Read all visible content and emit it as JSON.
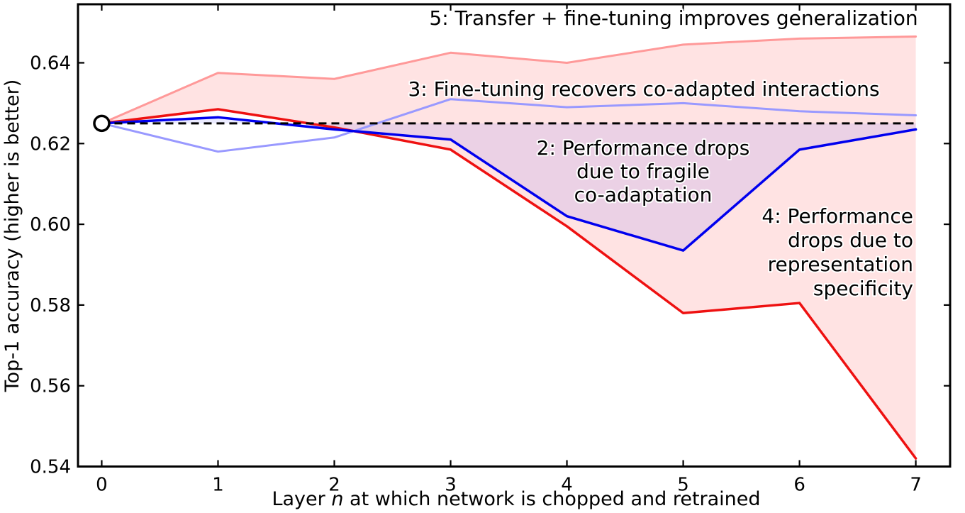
{
  "figure": {
    "background": "#ffffff",
    "axis_color": "#000000"
  },
  "chart_data": {
    "type": "line",
    "title": "",
    "xlabel_prefix": "Layer ",
    "xlabel_var": "n",
    "xlabel_suffix": " at which network is chopped and retrained",
    "ylabel": "Top-1 accuracy (higher is better)",
    "xlim": [
      -0.204,
      7.295
    ],
    "ylim": [
      0.54,
      0.6545
    ],
    "grid": false,
    "legend": "none",
    "xticks": [
      "0",
      "1",
      "2",
      "3",
      "4",
      "5",
      "6",
      "7"
    ],
    "xtick_values": [
      0,
      1,
      2,
      3,
      4,
      5,
      6,
      7
    ],
    "yticks": [
      "0.54",
      "0.56",
      "0.58",
      "0.60",
      "0.62",
      "0.64"
    ],
    "ytick_values": [
      0.54,
      0.56,
      0.58,
      0.6,
      0.62,
      0.64
    ],
    "x": [
      0,
      1,
      2,
      3,
      4,
      5,
      6,
      7
    ],
    "baseline": {
      "value": 0.625,
      "style": "dashed",
      "color": "#000000",
      "marker": {
        "x": 0,
        "value": 0.625,
        "shape": "open-circle",
        "fill": "#ffffff",
        "edge": "#000000"
      }
    },
    "series": [
      {
        "id": "transfer_finetune",
        "label": "5: Transfer + fine-tuning improves generalization",
        "color": "#ff9999",
        "width": 3,
        "values": [
          0.625,
          0.6375,
          0.636,
          0.6425,
          0.64,
          0.6445,
          0.646,
          0.6465
        ]
      },
      {
        "id": "finetune_recovers",
        "label": "3: Fine-tuning recovers co-adapted interactions",
        "color": "#9999ff",
        "width": 3,
        "values": [
          0.625,
          0.618,
          0.6215,
          0.631,
          0.629,
          0.63,
          0.628,
          0.627
        ]
      },
      {
        "id": "representation_specificity",
        "label": "4: Performance drops due to representation specificity",
        "color": "#ee1111",
        "width": 3.5,
        "values": [
          0.625,
          0.6285,
          0.624,
          0.6185,
          0.5995,
          0.578,
          0.5805,
          0.542
        ]
      },
      {
        "id": "fragile_coadaptation",
        "label": "2: Performance drops due to fragile co-adaptation",
        "color": "#0000ee",
        "width": 3.5,
        "values": [
          0.625,
          0.6265,
          0.6235,
          0.621,
          0.602,
          0.5935,
          0.6185,
          0.6235
        ]
      }
    ],
    "fills": [
      {
        "id": "anb_band",
        "between": [
          "representation_specificity",
          "transfer_finetune"
        ],
        "color": "rgba(255,40,40,0.13)"
      },
      {
        "id": "bnb_drop_band",
        "between": [
          "fragile_coadaptation",
          "baseline"
        ],
        "color": "rgba(60,60,255,0.10)"
      }
    ],
    "annotations": [
      {
        "id": "label-5",
        "lines": [
          "5: Transfer + fine-tuning improves generalization"
        ],
        "x": 950,
        "y": 35,
        "align": "middle",
        "line_height": 33
      },
      {
        "id": "label-3",
        "lines": [
          "3: Fine-tuning recovers co-adapted interactions"
        ],
        "x": 908,
        "y": 135,
        "align": "middle",
        "line_height": 33
      },
      {
        "id": "label-2",
        "lines": [
          "2: Performance drops",
          "due to fragile",
          "co-adaptation"
        ],
        "x": 907,
        "y": 218,
        "align": "middle",
        "line_height": 33
      },
      {
        "id": "label-4",
        "lines": [
          "4: Performance",
          "drops due to",
          "representation",
          "specificity"
        ],
        "x": 1288,
        "y": 314,
        "align": "end",
        "line_height": 34
      }
    ]
  }
}
